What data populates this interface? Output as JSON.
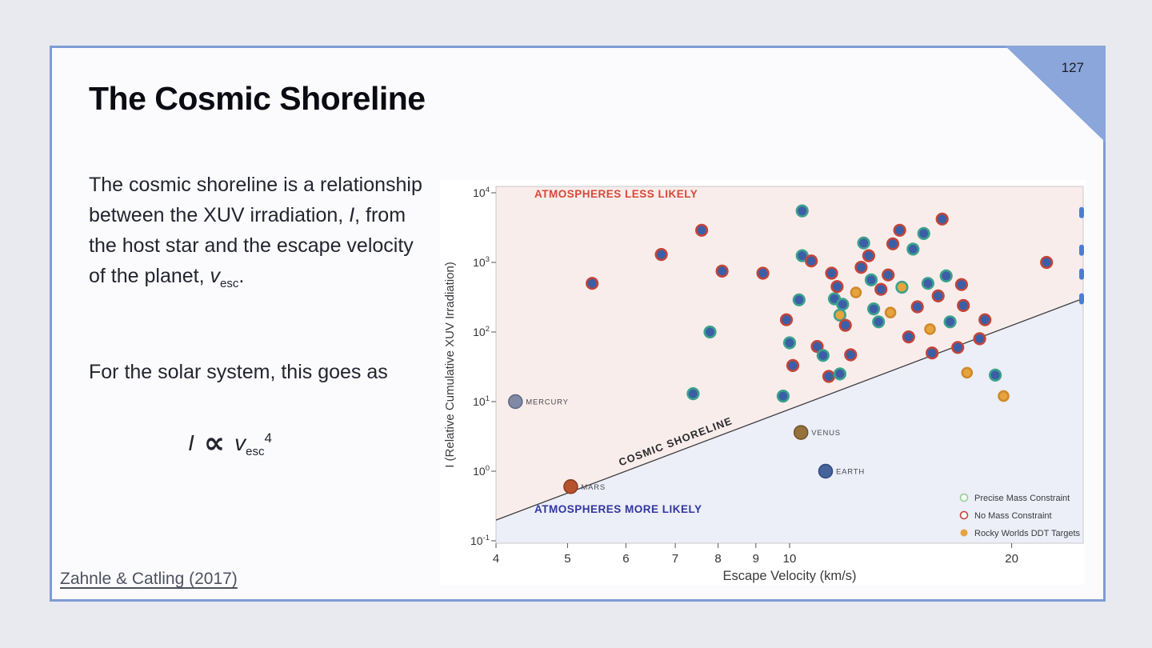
{
  "page_number": "127",
  "title": "The Cosmic Shoreline",
  "paragraph1": {
    "part1": "The cosmic shoreline is a relationship between the XUV irradiation, ",
    "var1": "I",
    "part2": ",  from the host star and the escape velocity of the planet, ",
    "var2": "v",
    "var2_sub": "esc",
    "part3": "."
  },
  "paragraph2": "For the solar system, this goes as",
  "formula": {
    "lhs": "I",
    "proportional": "∝",
    "rhs": "v",
    "rhs_sub": "esc",
    "rhs_sup": "4"
  },
  "citation": "Zahnle & Catling (2017)",
  "theme": {
    "slide_border": "#7e9cd4",
    "corner_fold": "#8aa6da",
    "page_background": "#e9eaf0",
    "slide_background": "#fbfbfd"
  },
  "chart_data": {
    "type": "scatter",
    "xlabel": "Escape Velocity (km/s)",
    "ylabel": "I (Relative Cumulative XUV Irradiation)",
    "x_scale": "log",
    "y_scale": "log",
    "xlim": [
      4,
      25
    ],
    "ylim": [
      0.1,
      10000
    ],
    "x_ticks": [
      4,
      5,
      6,
      7,
      8,
      9,
      10,
      20
    ],
    "y_tick_exponents": [
      4,
      3,
      2,
      1,
      0,
      -1
    ],
    "grid": false,
    "region_labels": {
      "above": "ATMOSPHERES LESS LIKELY",
      "below": "ATMOSPHERES MORE LIKELY"
    },
    "shoreline_label": "COSMIC SHORELINE",
    "shoreline": {
      "slope": 4,
      "intercept": -3.11,
      "relation": "log10(I) = 4*log10(v_esc) - 3.11"
    },
    "colors": {
      "region_above": "#f9edeb",
      "region_below": "#eceef8",
      "label_above": "#d6493a",
      "label_below": "#3136a0",
      "fill_navy": "#3b5fa7",
      "ring_green": "#3da28c",
      "ring_red": "#c2453a",
      "fill_orange": "#e6a33e",
      "fill_orange_edge": "#d08a2a",
      "legend_green": "#8fd08f",
      "edge_mark": "#4d7cd6",
      "shoreline_line": "#3c3c40"
    },
    "legend": [
      {
        "label": "Precise Mass Constraint",
        "style": "open",
        "color": "#8fd08f"
      },
      {
        "label": "No Mass Constraint",
        "style": "open",
        "color": "#c2453a"
      },
      {
        "label": "Rocky Worlds DDT Targets",
        "style": "filled",
        "color": "#e6a33e"
      }
    ],
    "planets": [
      {
        "name": "MERCURY",
        "v": 4.25,
        "I": 10,
        "color": "#8089a6",
        "edge": "#5d6680"
      },
      {
        "name": "MARS",
        "v": 5.05,
        "I": 0.6,
        "color": "#b5532f",
        "edge": "#8c3a20"
      },
      {
        "name": "VENUS",
        "v": 10.36,
        "I": 3.6,
        "color": "#96713c",
        "edge": "#6e5228"
      },
      {
        "name": "EARTH",
        "v": 11.19,
        "I": 1.0,
        "color": "#47639c",
        "edge": "#2f4a7d"
      }
    ],
    "edge_marks": [
      5200,
      1500,
      680,
      300
    ],
    "points": [
      {
        "v": 5.4,
        "I": 500,
        "m": "n"
      },
      {
        "v": 6.7,
        "I": 1300,
        "m": "n"
      },
      {
        "v": 7.4,
        "I": 13,
        "m": "p"
      },
      {
        "v": 7.6,
        "I": 2900,
        "m": "n"
      },
      {
        "v": 7.8,
        "I": 100,
        "m": "p"
      },
      {
        "v": 8.1,
        "I": 750,
        "m": "n"
      },
      {
        "v": 9.2,
        "I": 700,
        "m": "n"
      },
      {
        "v": 9.8,
        "I": 12,
        "m": "p"
      },
      {
        "v": 9.9,
        "I": 150,
        "m": "n"
      },
      {
        "v": 10.0,
        "I": 70,
        "m": "p"
      },
      {
        "v": 10.1,
        "I": 33,
        "m": "n"
      },
      {
        "v": 10.3,
        "I": 290,
        "m": "p"
      },
      {
        "v": 10.4,
        "I": 1250,
        "m": "p"
      },
      {
        "v": 10.4,
        "I": 5500,
        "m": "p"
      },
      {
        "v": 10.7,
        "I": 1050,
        "m": "n"
      },
      {
        "v": 10.9,
        "I": 62,
        "m": "n"
      },
      {
        "v": 11.1,
        "I": 46,
        "m": "p"
      },
      {
        "v": 11.3,
        "I": 23,
        "m": "n"
      },
      {
        "v": 11.4,
        "I": 700,
        "m": "n"
      },
      {
        "v": 11.5,
        "I": 300,
        "m": "p"
      },
      {
        "v": 11.6,
        "I": 450,
        "m": "n"
      },
      {
        "v": 11.7,
        "I": 175,
        "m": "dp"
      },
      {
        "v": 11.7,
        "I": 25,
        "m": "p"
      },
      {
        "v": 11.8,
        "I": 250,
        "m": "p"
      },
      {
        "v": 11.9,
        "I": 125,
        "m": "n"
      },
      {
        "v": 12.1,
        "I": 47,
        "m": "n"
      },
      {
        "v": 12.3,
        "I": 370,
        "m": "d"
      },
      {
        "v": 12.5,
        "I": 850,
        "m": "n"
      },
      {
        "v": 12.6,
        "I": 1900,
        "m": "p"
      },
      {
        "v": 12.8,
        "I": 1250,
        "m": "n"
      },
      {
        "v": 12.9,
        "I": 560,
        "m": "p"
      },
      {
        "v": 13.0,
        "I": 215,
        "m": "p"
      },
      {
        "v": 13.2,
        "I": 140,
        "m": "p"
      },
      {
        "v": 13.3,
        "I": 410,
        "m": "n"
      },
      {
        "v": 13.6,
        "I": 660,
        "m": "n"
      },
      {
        "v": 13.7,
        "I": 190,
        "m": "d"
      },
      {
        "v": 13.8,
        "I": 1850,
        "m": "n"
      },
      {
        "v": 14.1,
        "I": 2900,
        "m": "n"
      },
      {
        "v": 14.2,
        "I": 440,
        "m": "dp"
      },
      {
        "v": 14.5,
        "I": 85,
        "m": "n"
      },
      {
        "v": 14.7,
        "I": 1550,
        "m": "p"
      },
      {
        "v": 14.9,
        "I": 230,
        "m": "n"
      },
      {
        "v": 15.2,
        "I": 2600,
        "m": "p"
      },
      {
        "v": 15.4,
        "I": 500,
        "m": "p"
      },
      {
        "v": 15.5,
        "I": 110,
        "m": "d"
      },
      {
        "v": 15.6,
        "I": 50,
        "m": "n"
      },
      {
        "v": 15.9,
        "I": 330,
        "m": "n"
      },
      {
        "v": 16.1,
        "I": 4200,
        "m": "n"
      },
      {
        "v": 16.3,
        "I": 640,
        "m": "p"
      },
      {
        "v": 16.5,
        "I": 140,
        "m": "p"
      },
      {
        "v": 16.9,
        "I": 60,
        "m": "n"
      },
      {
        "v": 17.1,
        "I": 480,
        "m": "n"
      },
      {
        "v": 17.2,
        "I": 240,
        "m": "n"
      },
      {
        "v": 17.4,
        "I": 26,
        "m": "d"
      },
      {
        "v": 18.1,
        "I": 80,
        "m": "n"
      },
      {
        "v": 18.4,
        "I": 150,
        "m": "n"
      },
      {
        "v": 19.0,
        "I": 24,
        "m": "p"
      },
      {
        "v": 19.5,
        "I": 12,
        "m": "d"
      },
      {
        "v": 22.3,
        "I": 1000,
        "m": "n"
      }
    ]
  }
}
